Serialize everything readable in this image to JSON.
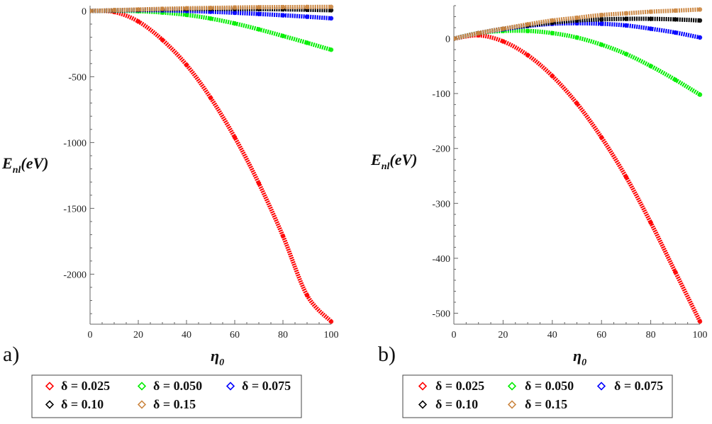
{
  "chart_data": [
    {
      "type": "line",
      "panel_label": "a)",
      "xlabel": "η",
      "xlabel_sub": "0",
      "ylabel": "E",
      "ylabel_sub": "nl",
      "ylabel_unit": "(eV)",
      "xlim": [
        0,
        100
      ],
      "ylim": [
        -2380,
        40
      ],
      "x_ticks": [
        "0",
        "20",
        "40",
        "60",
        "80",
        "100"
      ],
      "y_ticks": [
        "0",
        "-500",
        "-1000",
        "-1500",
        "-2000"
      ],
      "x_tick_values": [
        0,
        20,
        40,
        60,
        80,
        100
      ],
      "y_tick_values": [
        0,
        -500,
        -1000,
        -1500,
        -2000
      ],
      "x": [
        0,
        10,
        20,
        30,
        40,
        50,
        60,
        70,
        80,
        90,
        100
      ],
      "series": [
        {
          "name": "δ = 0.025",
          "color": "#ff0000",
          "values": [
            0,
            -8,
            -80,
            -220,
            -410,
            -660,
            -960,
            -1310,
            -1710,
            -2160,
            -2360
          ]
        },
        {
          "name": "δ = 0.050",
          "color": "#00ee00",
          "values": [
            0,
            2,
            -2,
            -12,
            -30,
            -58,
            -95,
            -140,
            -190,
            -242,
            -295
          ]
        },
        {
          "name": "δ = 0.075",
          "color": "#0000ff",
          "values": [
            0,
            4,
            6,
            5,
            0,
            -6,
            -14,
            -23,
            -33,
            -44,
            -56
          ]
        },
        {
          "name": "δ = 0.10",
          "color": "#000000",
          "values": [
            0,
            5,
            9,
            12,
            14,
            15,
            15,
            14,
            12,
            9,
            5
          ]
        },
        {
          "name": "δ = 0.15",
          "color": "#cc8844",
          "values": [
            0,
            6,
            11,
            16,
            20,
            23,
            26,
            28,
            29,
            30,
            31
          ]
        }
      ]
    },
    {
      "type": "line",
      "panel_label": "b)",
      "xlabel": "η",
      "xlabel_sub": "0",
      "ylabel": "E",
      "ylabel_sub": "nl",
      "ylabel_unit": "(eV)",
      "xlim": [
        0,
        100
      ],
      "ylim": [
        -520,
        60
      ],
      "x_ticks": [
        "0",
        "20",
        "40",
        "60",
        "80",
        "100"
      ],
      "y_ticks": [
        "0",
        "-100",
        "-200",
        "-300",
        "-400",
        "-500"
      ],
      "x_tick_values": [
        0,
        20,
        40,
        60,
        80,
        100
      ],
      "y_tick_values": [
        0,
        -100,
        -200,
        -300,
        -400,
        -500
      ],
      "x": [
        0,
        10,
        20,
        30,
        40,
        50,
        60,
        70,
        80,
        90,
        100
      ],
      "series": [
        {
          "name": "δ = 0.025",
          "color": "#ff0000",
          "values": [
            0,
            6,
            -5,
            -30,
            -68,
            -118,
            -180,
            -252,
            -335,
            -425,
            -515
          ]
        },
        {
          "name": "δ = 0.050",
          "color": "#00ee00",
          "values": [
            0,
            10,
            14,
            14,
            10,
            2,
            -11,
            -28,
            -50,
            -75,
            -102
          ]
        },
        {
          "name": "δ = 0.075",
          "color": "#0000ff",
          "values": [
            0,
            10,
            17,
            23,
            27,
            28,
            27,
            24,
            18,
            11,
            2
          ]
        },
        {
          "name": "δ = 0.10",
          "color": "#000000",
          "values": [
            0,
            10,
            18,
            24,
            29,
            33,
            35,
            36,
            36,
            35,
            33
          ]
        },
        {
          "name": "δ = 0.15",
          "color": "#cc8844",
          "values": [
            0,
            10,
            18,
            26,
            33,
            38,
            43,
            46,
            49,
            51,
            53
          ]
        }
      ]
    }
  ]
}
